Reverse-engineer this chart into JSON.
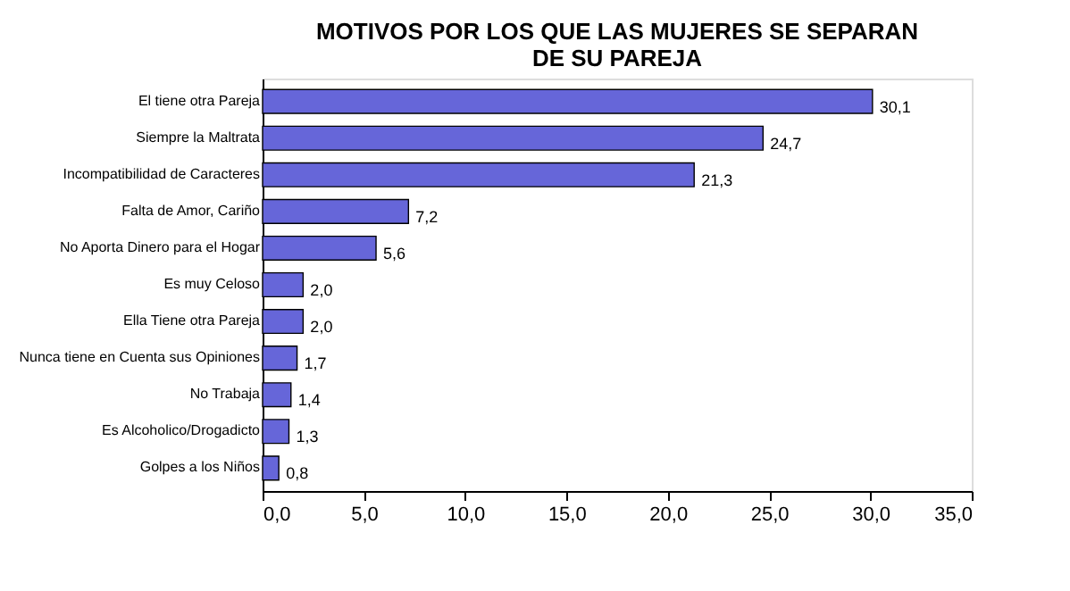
{
  "chart_data": {
    "type": "bar",
    "orientation": "horizontal",
    "title": [
      "MOTIVOS POR LOS QUE LAS MUJERES SE SEPARAN",
      "DE SU PAREJA"
    ],
    "categories": [
      "El tiene otra Pareja",
      "Siempre la Maltrata",
      "Incompatibilidad de Caracteres",
      "Falta de Amor, Cariño",
      "No Aporta Dinero para el Hogar",
      "Es muy Celoso",
      "Ella Tiene otra Pareja",
      "Nunca tiene en Cuenta sus Opiniones",
      "No Trabaja",
      "Es Alcoholico/Drogadicto",
      "Golpes a los Niños"
    ],
    "values": [
      30.1,
      24.7,
      21.3,
      7.2,
      5.6,
      2.0,
      2.0,
      1.7,
      1.4,
      1.3,
      0.8
    ],
    "value_labels": [
      "30,1",
      "24,7",
      "21,3",
      "7,2",
      "5,6",
      "2,0",
      "2,0",
      "1,7",
      "1,4",
      "1,3",
      "0,8"
    ],
    "color": "#6666d9",
    "xlim": [
      0,
      35
    ],
    "xticks": [
      {
        "value": 0,
        "label": "0,0"
      },
      {
        "value": 5,
        "label": "5,0"
      },
      {
        "value": 10,
        "label": "10,0"
      },
      {
        "value": 15,
        "label": "15,0"
      },
      {
        "value": 20,
        "label": "20,0"
      },
      {
        "value": 25,
        "label": "25,0"
      },
      {
        "value": 30,
        "label": "30,0"
      },
      {
        "value": 35,
        "label": "35,0"
      }
    ],
    "grid": false
  }
}
